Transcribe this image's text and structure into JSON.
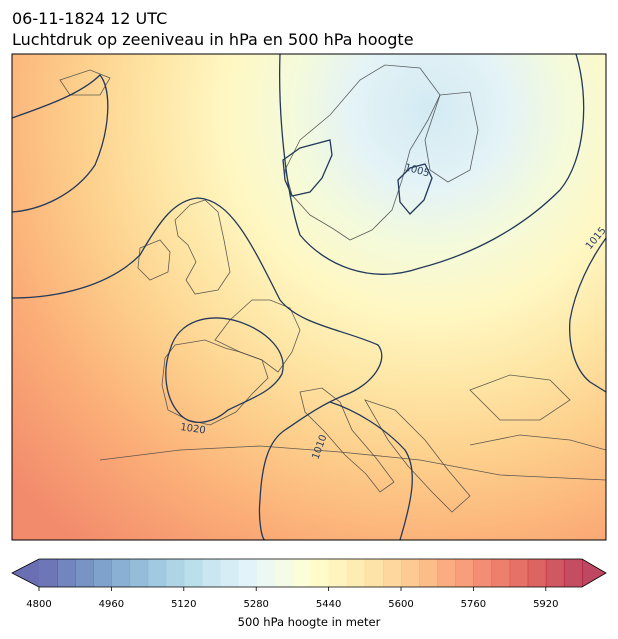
{
  "title_line1": "06-11-1824 12 UTC",
  "title_line2": "Luchtdruk op zeeniveau in hPa en 500 hPa hoogte",
  "isobar_labels": [
    "1005",
    "1010",
    "1015",
    "1020"
  ],
  "colorbar": {
    "label": "500 hPa hoogte in meter",
    "min": 4800,
    "max": 6000,
    "step": 40,
    "ticks": [
      4800,
      4960,
      5120,
      5280,
      5440,
      5600,
      5760,
      5920
    ],
    "colormap": "RdYlBu_r"
  }
}
